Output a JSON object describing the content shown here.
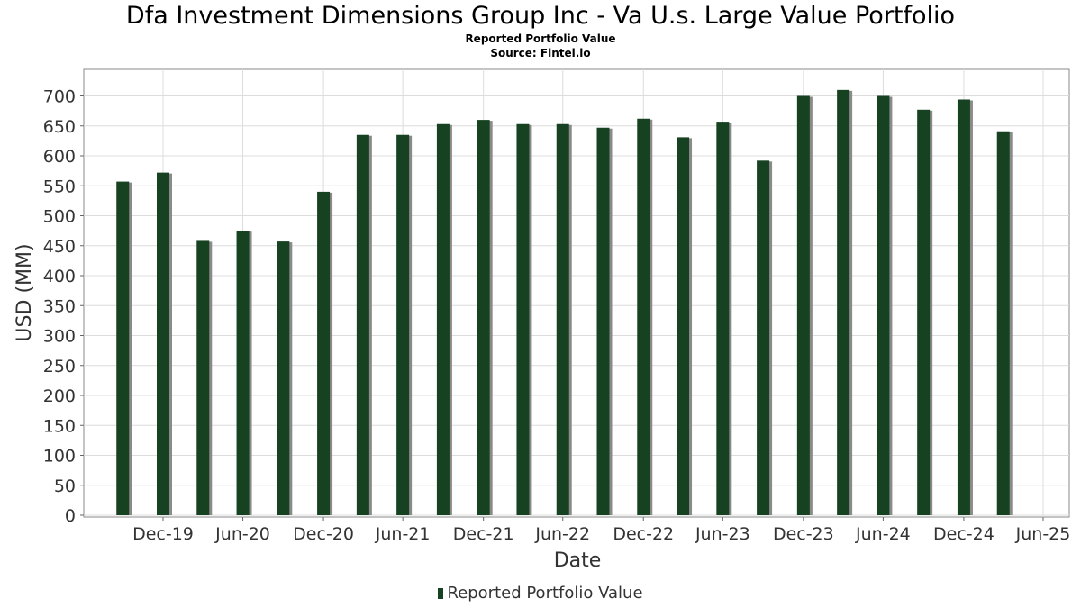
{
  "header": {
    "title": "Dfa Investment Dimensions Group Inc - Va U.s. Large Value Portfolio",
    "subtitle": "Reported Portfolio Value",
    "source": "Source: Fintel.io"
  },
  "legend": {
    "label": "Reported Portfolio Value"
  },
  "colors": {
    "bar": "#174222",
    "bar_shadow": "#8a8a8a",
    "grid": "#dcdcdc"
  },
  "chart_data": {
    "type": "bar",
    "title": "Dfa Investment Dimensions Group Inc - Va U.s. Large Value Portfolio",
    "subtitle": "Reported Portfolio Value",
    "xlabel": "Date",
    "ylabel": "USD (MM)",
    "ylim": [
      0,
      740
    ],
    "yticks": [
      0,
      50,
      100,
      150,
      200,
      250,
      300,
      350,
      400,
      450,
      500,
      550,
      600,
      650,
      700
    ],
    "xticks": [
      "Dec-19",
      "Jun-20",
      "Dec-20",
      "Jun-21",
      "Dec-21",
      "Jun-22",
      "Dec-22",
      "Jun-23",
      "Dec-23",
      "Jun-24",
      "Dec-24",
      "Jun-25"
    ],
    "grid": true,
    "legend_position": "bottom",
    "series": [
      {
        "name": "Reported Portfolio Value",
        "x": [
          "2019-09-30",
          "2019-12-31",
          "2020-03-31",
          "2020-06-30",
          "2020-09-30",
          "2020-12-31",
          "2021-03-31",
          "2021-06-30",
          "2021-09-30",
          "2021-12-31",
          "2022-03-31",
          "2022-06-30",
          "2022-09-30",
          "2022-12-31",
          "2023-03-31",
          "2023-06-30",
          "2023-09-30",
          "2023-12-31",
          "2024-03-31",
          "2024-06-30",
          "2024-09-30",
          "2024-12-31",
          "2025-03-31"
        ],
        "values": [
          557,
          572,
          458,
          475,
          457,
          540,
          635,
          635,
          653,
          660,
          653,
          653,
          647,
          662,
          631,
          657,
          592,
          700,
          710,
          700,
          677,
          694,
          641
        ]
      }
    ]
  }
}
